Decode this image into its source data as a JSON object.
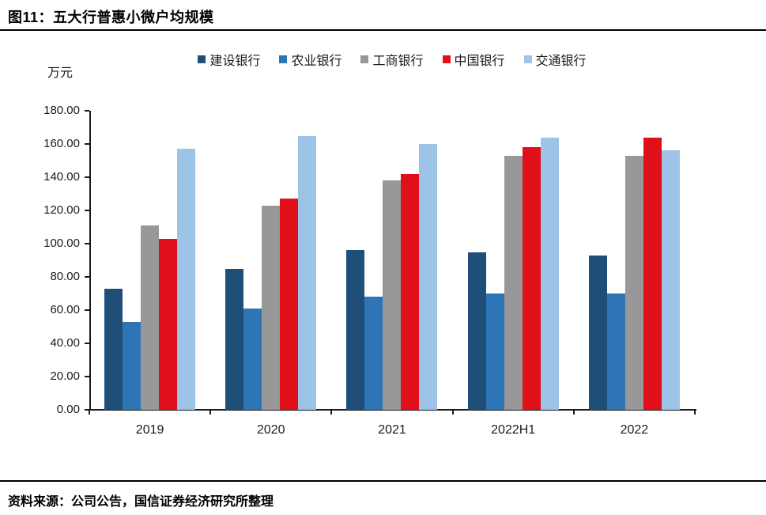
{
  "title": "图11：五大行普惠小微户均规模",
  "source": "资料来源：公司公告，国信证券经济研究所整理",
  "chart_data": {
    "type": "bar",
    "title": "图11：五大行普惠小微户均规模",
    "unit_label": "万元",
    "xlabel": "",
    "ylabel": "万元",
    "categories": [
      "2019",
      "2020",
      "2021",
      "2022H1",
      "2022"
    ],
    "series": [
      {
        "name": "建设银行",
        "color": "#1F4E79",
        "values": [
          73,
          85,
          96,
          95,
          93
        ]
      },
      {
        "name": "农业银行",
        "color": "#2E75B6",
        "values": [
          53,
          61,
          68,
          70,
          70
        ]
      },
      {
        "name": "工商银行",
        "color": "#989898",
        "values": [
          111,
          123,
          138,
          153,
          153
        ]
      },
      {
        "name": "中国银行",
        "color": "#DF1019",
        "values": [
          103,
          127,
          142,
          158,
          164
        ]
      },
      {
        "name": "交通银行",
        "color": "#9DC3E6",
        "values": [
          157,
          165,
          160,
          164,
          156
        ]
      }
    ],
    "ylim": [
      0,
      180
    ],
    "ytick_step": 20,
    "ytick_labels": [
      "0.00",
      "20.00",
      "40.00",
      "60.00",
      "80.00",
      "100.00",
      "120.00",
      "140.00",
      "160.00",
      "180.00"
    ],
    "legend_position": "top",
    "grid": false,
    "axis_color": "#1a1a1a"
  }
}
